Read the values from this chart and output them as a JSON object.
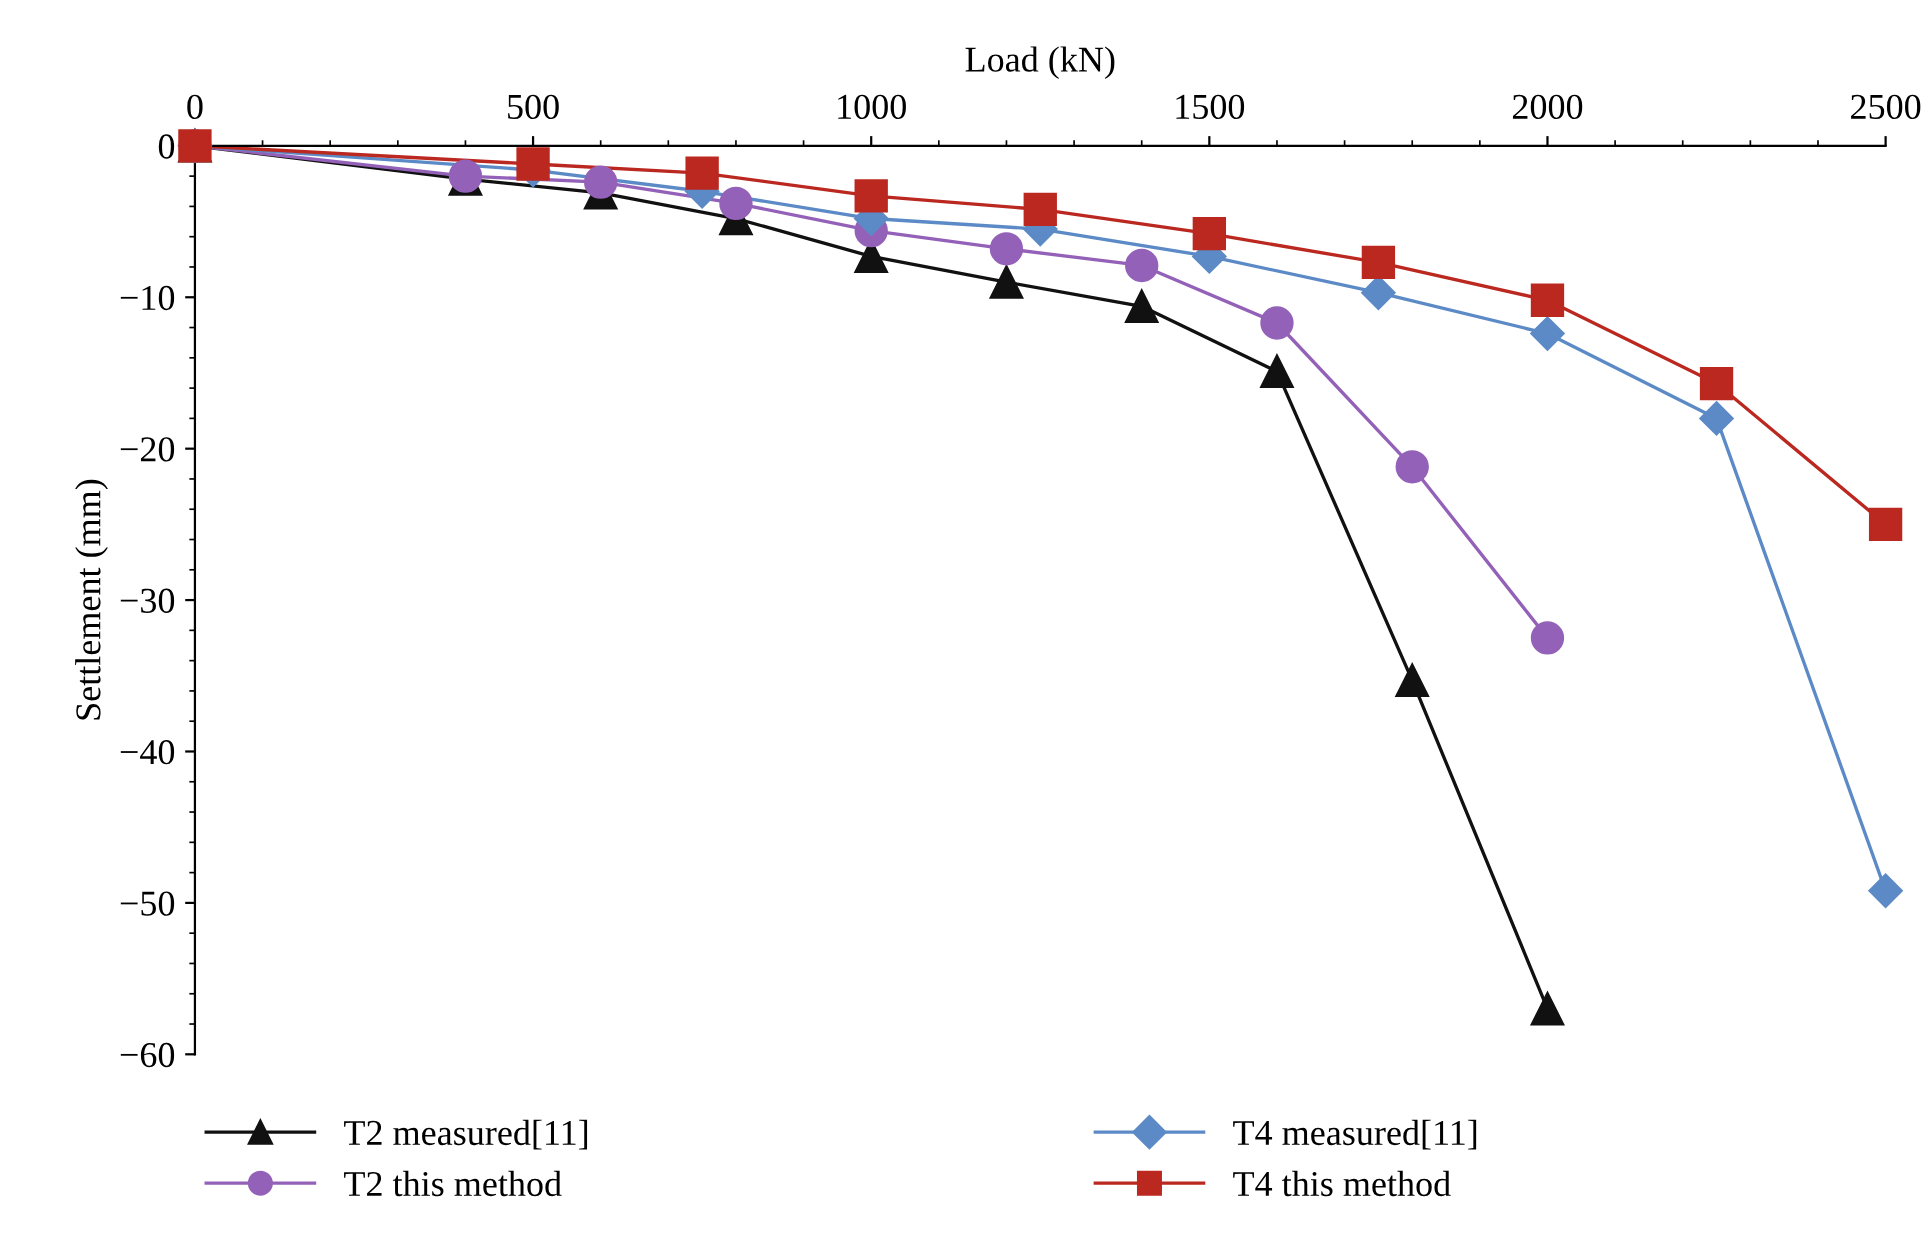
{
  "chart_data": {
    "type": "line",
    "xlabel": "Load (kN)",
    "ylabel": "Settlement (mm)",
    "xlim": [
      0,
      2500
    ],
    "xticks": [
      0,
      500,
      1000,
      1500,
      2000,
      2500
    ],
    "ylim": [
      -60,
      0
    ],
    "yticks": [
      {
        "value": -60,
        "label": "−60"
      },
      {
        "value": -50,
        "label": "−50"
      },
      {
        "value": -40,
        "label": "−40"
      },
      {
        "value": -30,
        "label": "−30"
      },
      {
        "value": -20,
        "label": "−20"
      },
      {
        "value": -10,
        "label": "−10"
      },
      0
    ],
    "grid": false,
    "legend": "bottom",
    "line_style": "solid",
    "series": [
      {
        "name": "T2 measured[11]",
        "color": "#111111",
        "marker": "triangle",
        "x": [
          0,
          400,
          600,
          800,
          1000,
          1200,
          1400,
          1600,
          1800,
          2000
        ],
        "values": [
          0,
          -2.2,
          -3.1,
          -4.8,
          -7.3,
          -9.0,
          -10.6,
          -14.9,
          -35.3,
          -57.0
        ]
      },
      {
        "name": "T2 this method",
        "color": "#9461b8",
        "marker": "circle",
        "x": [
          0,
          400,
          600,
          800,
          1000,
          1200,
          1400,
          1600,
          1800,
          2000
        ],
        "values": [
          0,
          -2.0,
          -2.4,
          -3.8,
          -5.6,
          -6.8,
          -7.9,
          -11.7,
          -21.2,
          -32.5
        ]
      },
      {
        "name": "T4 measured[11]",
        "color": "#5b8ac6",
        "marker": "diamond",
        "x": [
          0,
          500,
          750,
          1000,
          1250,
          1500,
          1750,
          2000,
          2250,
          2500
        ],
        "values": [
          0,
          -1.6,
          -3.0,
          -4.8,
          -5.5,
          -7.3,
          -9.7,
          -12.4,
          -18.0,
          -49.2
        ]
      },
      {
        "name": "T4 this method",
        "color": "#bb2820",
        "marker": "square",
        "x": [
          0,
          500,
          750,
          1000,
          1250,
          1500,
          1750,
          2000,
          2250,
          2500
        ],
        "values": [
          0,
          -1.2,
          -1.8,
          -3.3,
          -4.2,
          -5.8,
          -7.7,
          -10.2,
          -15.7,
          -25.0
        ]
      }
    ]
  }
}
